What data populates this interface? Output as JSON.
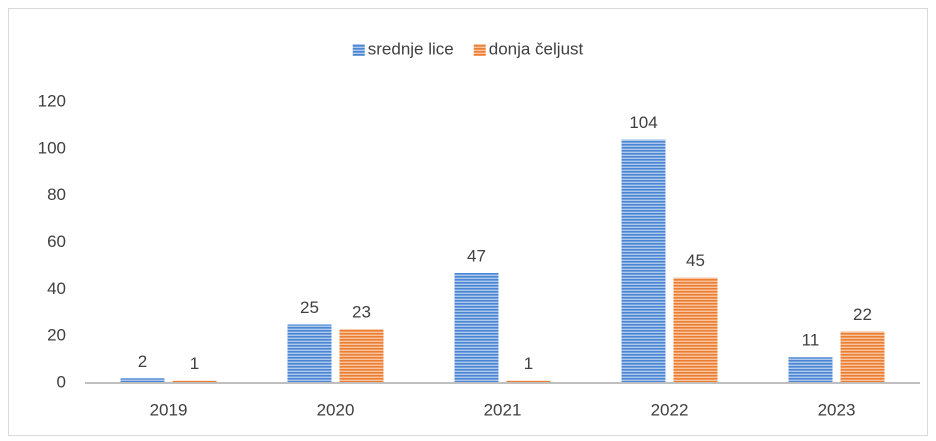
{
  "chart_data": {
    "type": "bar",
    "categories": [
      "2019",
      "2020",
      "2021",
      "2022",
      "2023"
    ],
    "series": [
      {
        "name": "srednje lice",
        "color": "#4a86d4",
        "values": [
          2,
          25,
          47,
          104,
          11
        ]
      },
      {
        "name": "donja čeljust",
        "color": "#ed7d31",
        "values": [
          1,
          23,
          1,
          45,
          22
        ]
      }
    ],
    "ylim": [
      0,
      120
    ],
    "yticks": [
      0,
      20,
      40,
      60,
      80,
      100,
      120
    ],
    "grid": false,
    "legend": "top"
  }
}
